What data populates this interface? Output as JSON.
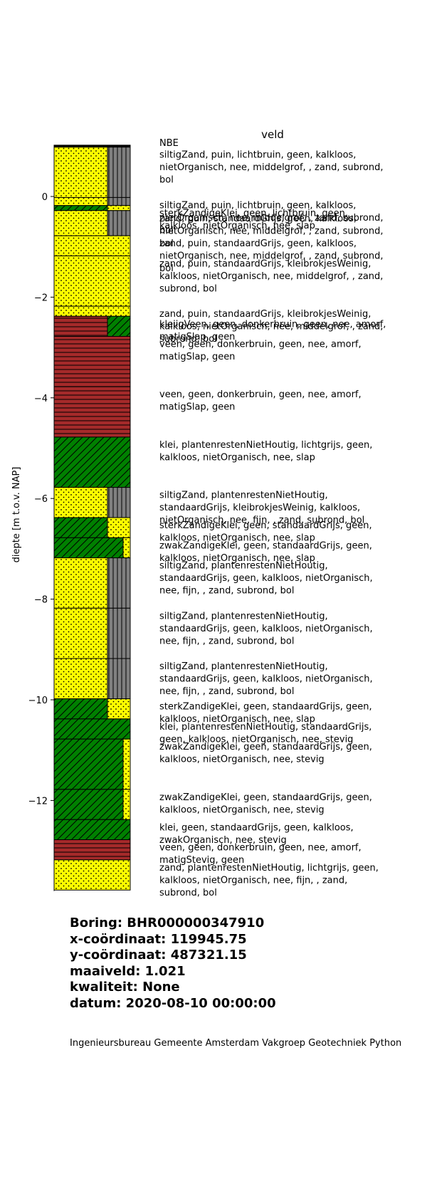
{
  "chart_data": {
    "type": "borehole-log",
    "title": "veld",
    "ylabel": "diepte [m t.o.v. NAP]",
    "ylim": [
      -13.8,
      1.02
    ],
    "yticks": [
      0,
      -2,
      -4,
      -6,
      -8,
      -10,
      -12
    ],
    "top_label": "NBE",
    "layers": [
      {
        "top": 1.02,
        "bottom": 0.98,
        "main": "black",
        "secondary": "black",
        "label": ""
      },
      {
        "top": 0.98,
        "bottom": -0.02,
        "main": "zand",
        "secondary": "puin",
        "label": "siltigZand, puin, lichtbruin, geen, kalkloos, nietOrganisch, nee, middelgrof, , zand, subrond, bol"
      },
      {
        "top": -0.02,
        "bottom": -0.18,
        "main": "zand",
        "secondary": "puin",
        "label": "siltigZand, puin, lichtbruin, geen, kalkloos, nietOrganisch, nee, middelgrof, , zand, subrond, bol"
      },
      {
        "top": -0.18,
        "bottom": -0.28,
        "main": "klei",
        "secondary": "zand",
        "label": "sterkZandigeKlei, geen, lichtbruin, geen, kalkloos, nietOrganisch, nee, slap"
      },
      {
        "top": -0.28,
        "bottom": -0.78,
        "main": "zand",
        "secondary": "puin",
        "label": "zand, puin, standaardGrijs, geen, kalkloos, nietOrganisch, nee, middelgrof, , zand, subrond, bol"
      },
      {
        "top": -0.78,
        "bottom": -1.18,
        "main": "zand",
        "secondary": "zand",
        "label": "zand, puin, standaardGrijs, geen, kalkloos, nietOrganisch, nee, middelgrof, , zand, subrond, bol"
      },
      {
        "top": -1.18,
        "bottom": -2.18,
        "main": "zand",
        "secondary": "zand",
        "label": "zand, puin, standaardGrijs, kleibrokjesWeinig, kalkloos, nietOrganisch, nee, middelgrof, , zand, subrond, bol"
      },
      {
        "top": -2.18,
        "bottom": -2.38,
        "main": "zand",
        "secondary": "zand",
        "label": "zand, puin, standaardGrijs, kleibrokjesWeinig, kalkloos, nietOrganisch, nee, middelgrof, , zand, subrond, bol"
      },
      {
        "top": -2.38,
        "bottom": -2.78,
        "main": "veen",
        "secondary": "klei",
        "label": "kleiigVeen, geen, donkerbruin, geen, nee, amorf, matigSlap, geen"
      },
      {
        "top": -2.78,
        "bottom": -3.78,
        "main": "veen",
        "secondary": "veen",
        "label": "veen, geen, donkerbruin, geen, nee, amorf, matigSlap, geen"
      },
      {
        "top": -3.78,
        "bottom": -4.78,
        "main": "veen",
        "secondary": "veen",
        "label": "veen, geen, donkerbruin, geen, nee, amorf, matigSlap, geen"
      },
      {
        "top": -4.78,
        "bottom": -5.78,
        "main": "klei",
        "secondary": "klei",
        "label": "klei, plantenrestenNietHoutig, lichtgrijs, geen, kalkloos, nietOrganisch, nee, slap"
      },
      {
        "top": -5.78,
        "bottom": -6.38,
        "main": "zand",
        "secondary": "puin",
        "label": "siltigZand, plantenrestenNietHoutig, standaardGrijs, kleibrokjesWeinig, kalkloos, nietOrganisch, nee, fijn, , zand, subrond, bol"
      },
      {
        "top": -6.38,
        "bottom": -6.78,
        "main": "klei",
        "secondary": "zand",
        "label": "sterkZandigeKlei, geen, standaardGrijs, geen, kalkloos, nietOrganisch, nee, slap"
      },
      {
        "top": -6.78,
        "bottom": -7.18,
        "main": "klei",
        "secondary": "zand",
        "narrow": true,
        "label": "zwakZandigeKlei, geen, standaardGrijs, geen, kalkloos, nietOrganisch, nee, slap"
      },
      {
        "top": -7.18,
        "bottom": -8.18,
        "main": "zand",
        "secondary": "puin",
        "label": "siltigZand, plantenrestenNietHoutig, standaardGrijs, geen, kalkloos, nietOrganisch, nee, fijn, , zand, subrond, bol"
      },
      {
        "top": -8.18,
        "bottom": -9.18,
        "main": "zand",
        "secondary": "puin",
        "label": "siltigZand, plantenrestenNietHoutig, standaardGrijs, geen, kalkloos, nietOrganisch, nee, fijn, , zand, subrond, bol"
      },
      {
        "top": -9.18,
        "bottom": -9.98,
        "main": "zand",
        "secondary": "puin",
        "label": "siltigZand, plantenrestenNietHoutig, standaardGrijs, geen, kalkloos, nietOrganisch, nee, fijn, , zand, subrond, bol"
      },
      {
        "top": -9.98,
        "bottom": -10.38,
        "main": "klei",
        "secondary": "zand",
        "label": "sterkZandigeKlei, geen, standaardGrijs, geen, kalkloos, nietOrganisch, nee, slap"
      },
      {
        "top": -10.38,
        "bottom": -10.78,
        "main": "klei",
        "secondary": "klei",
        "label": "klei, plantenrestenNietHoutig, standaardGrijs, geen, kalkloos, nietOrganisch, nee, stevig"
      },
      {
        "top": -10.78,
        "bottom": -11.78,
        "main": "klei",
        "secondary": "zand",
        "narrow": true,
        "label": "zwakZandigeKlei, geen, standaardGrijs, geen, kalkloos, nietOrganisch, nee, stevig"
      },
      {
        "top": -11.78,
        "bottom": -12.38,
        "main": "klei",
        "secondary": "zand",
        "narrow": true,
        "label": "zwakZandigeKlei, geen, standaardGrijs, geen, kalkloos, nietOrganisch, nee, stevig"
      },
      {
        "top": -12.38,
        "bottom": -12.78,
        "main": "klei",
        "secondary": "klei",
        "label": "klei, geen, standaardGrijs, geen, kalkloos, zwakOrganisch, nee, stevig"
      },
      {
        "top": -12.78,
        "bottom": -13.18,
        "main": "veen",
        "secondary": "veen",
        "label": "veen, geen, donkerbruin, geen, nee, amorf, matigStevig, geen"
      },
      {
        "top": -13.18,
        "bottom": -13.78,
        "main": "zand",
        "secondary": "zand",
        "label": "zand, plantenrestenNietHoutig, lichtgrijs, geen, kalkloos, nietOrganisch, nee, fijn, , zand, subrond, bol"
      }
    ],
    "colors": {
      "zand": "#ffff00",
      "klei": "#008000",
      "veen": "#a52a2a",
      "puin": "#808080",
      "black": "#000000"
    }
  },
  "info": {
    "boring": "Boring: BHR000000347910",
    "x": "x-coördinaat: 119945.75",
    "y": "y-coördinaat: 487321.15",
    "maaiveld": "maaiveld: 1.021",
    "kwaliteit": "kwaliteit: None",
    "datum": "datum: 2020-08-10 00:00:00"
  },
  "footer": "Ingenieursbureau Gemeente Amsterdam Vakgroep Geotechniek Python"
}
